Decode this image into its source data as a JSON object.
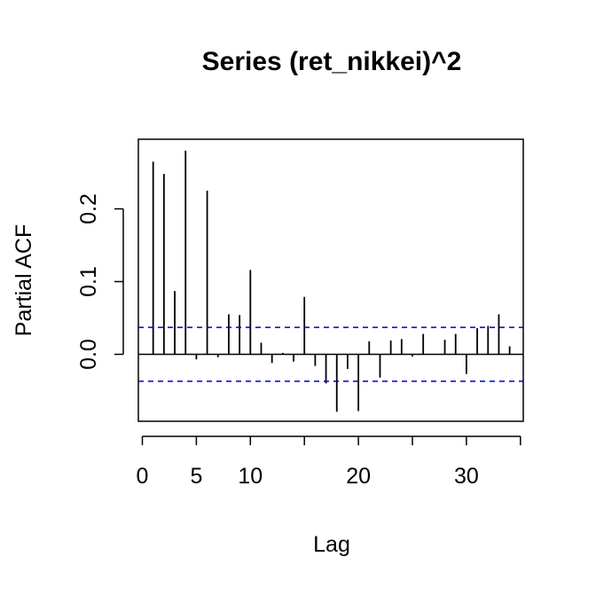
{
  "chart_data": {
    "type": "bar",
    "title": "Series  (ret_nikkei)^2",
    "xlabel": "Lag",
    "ylabel": "Partial ACF",
    "x_ticks": [
      0,
      5,
      10,
      20,
      30
    ],
    "y_ticks": [
      "0.0",
      "0.1",
      "0.2"
    ],
    "xlim": [
      0,
      35
    ],
    "ylim": [
      -0.09,
      0.3
    ],
    "lags": [
      1,
      2,
      3,
      4,
      5,
      6,
      7,
      8,
      9,
      10,
      11,
      12,
      13,
      14,
      15,
      16,
      17,
      18,
      19,
      20,
      21,
      22,
      23,
      24,
      25,
      26,
      27,
      28,
      29,
      30,
      31,
      32,
      33,
      34
    ],
    "values": [
      0.265,
      0.248,
      0.087,
      0.28,
      -0.007,
      0.225,
      -0.004,
      0.055,
      0.054,
      0.116,
      0.016,
      -0.012,
      0.002,
      -0.01,
      0.079,
      -0.016,
      -0.04,
      -0.079,
      -0.02,
      -0.078,
      0.018,
      -0.032,
      0.019,
      0.021,
      -0.003,
      0.028,
      0.0,
      0.02,
      0.028,
      -0.027,
      0.036,
      0.039,
      0.055,
      0.011
    ],
    "confidence_bound": 0.037,
    "colors": {
      "bars": "#000000",
      "confidence": "#0000cd",
      "frame": "#000000"
    }
  }
}
